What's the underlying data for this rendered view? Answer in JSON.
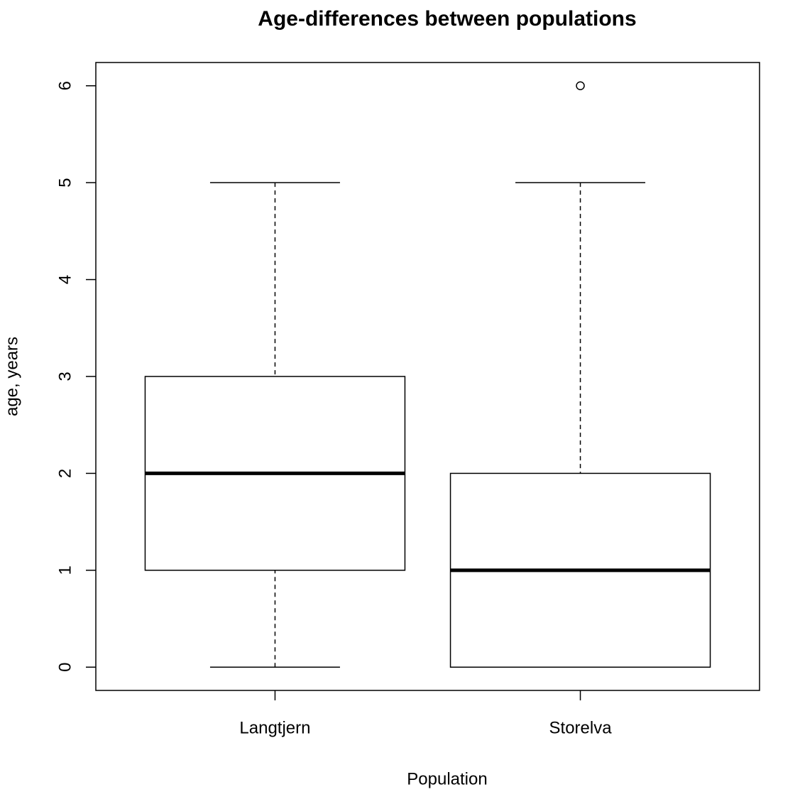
{
  "chart_data": {
    "type": "boxplot",
    "title": "Age-differences between populations",
    "xlabel": "Population",
    "ylabel": "age, years",
    "categories": [
      "Langtjern",
      "Storelva"
    ],
    "boxes": [
      {
        "min": 0,
        "q1": 1,
        "median": 2,
        "q3": 3,
        "max": 5,
        "outliers": []
      },
      {
        "min": 0,
        "q1": 0,
        "median": 1,
        "q3": 2,
        "max": 5,
        "outliers": [
          6
        ]
      }
    ],
    "ylim": [
      -0.24,
      6.24
    ],
    "yticks": [
      0,
      1,
      2,
      3,
      4,
      5,
      6
    ]
  }
}
